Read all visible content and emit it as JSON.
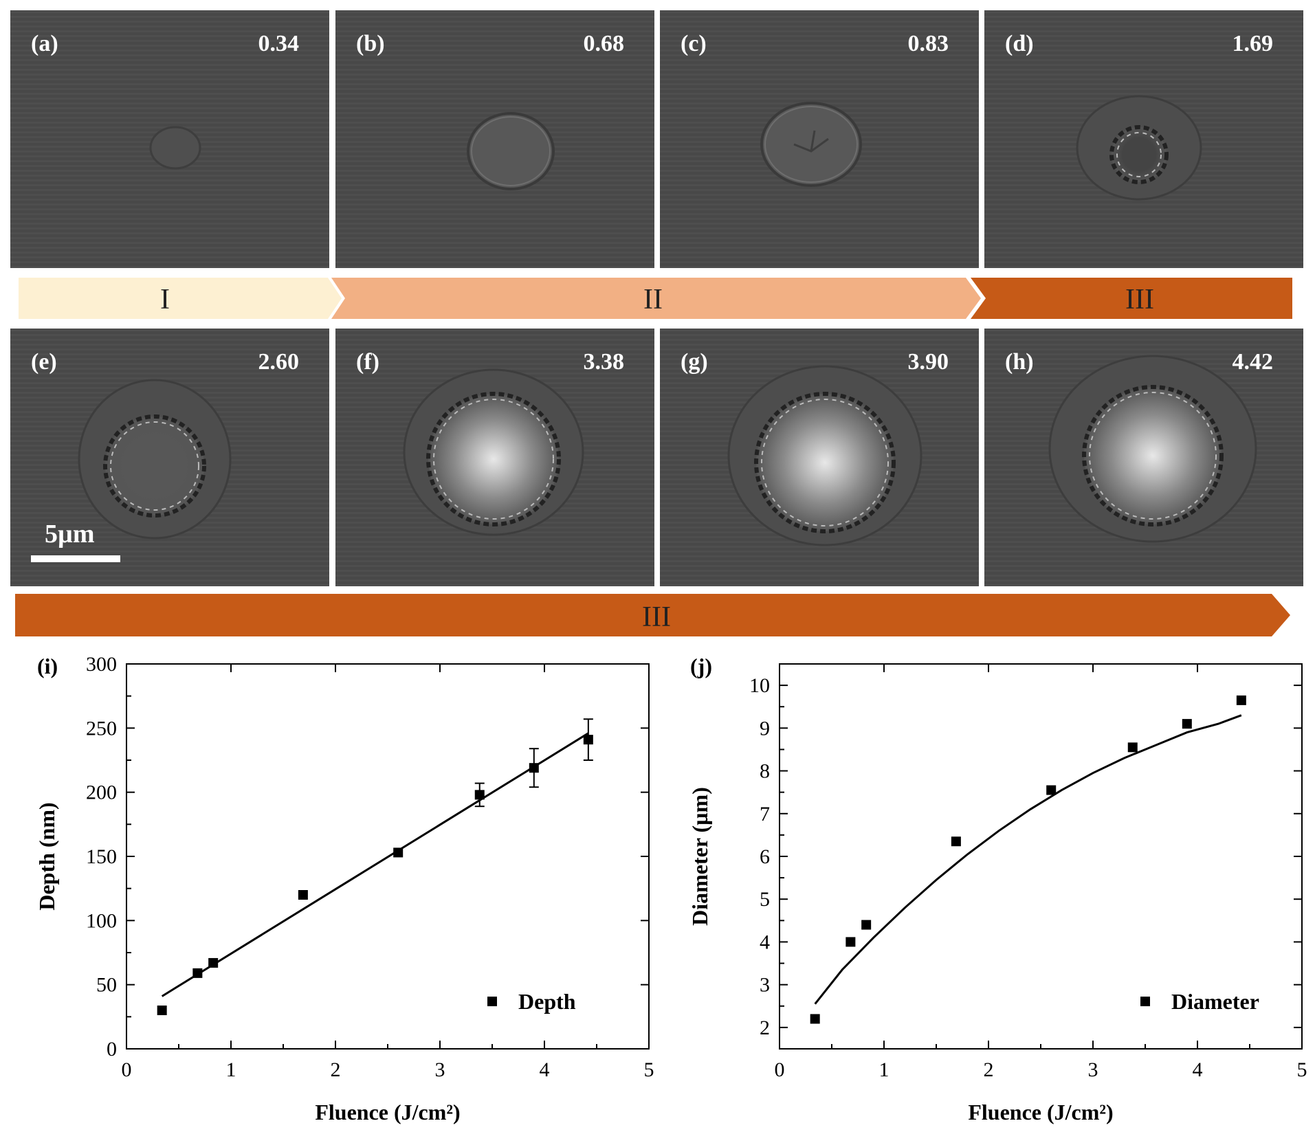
{
  "panels": [
    {
      "label": "(a)",
      "fluence": "0.34"
    },
    {
      "label": "(b)",
      "fluence": "0.68"
    },
    {
      "label": "(c)",
      "fluence": "0.83"
    },
    {
      "label": "(d)",
      "fluence": "1.69"
    },
    {
      "label": "(e)",
      "fluence": "2.60"
    },
    {
      "label": "(f)",
      "fluence": "3.38"
    },
    {
      "label": "(g)",
      "fluence": "3.90"
    },
    {
      "label": "(h)",
      "fluence": "4.42"
    }
  ],
  "scale_bar": "5µm",
  "regions": {
    "row1": [
      "I",
      "II",
      "III"
    ],
    "row2": [
      "III"
    ]
  },
  "colors": {
    "region_I": "#fdf0d2",
    "region_II": "#f2b084",
    "region_III": "#c65a17",
    "panel_bg": "#4a4a4a"
  },
  "chart_data": [
    {
      "type": "scatter",
      "panel_label": "(i)",
      "xlabel": "Fluence (J/cm²)",
      "ylabel": "Depth (nm)",
      "xlim": [
        0,
        5
      ],
      "ylim": [
        0,
        300
      ],
      "xticks": [
        0,
        1,
        2,
        3,
        4,
        5
      ],
      "yticks": [
        0,
        50,
        100,
        150,
        200,
        250,
        300
      ],
      "series": [
        {
          "name": "Depth",
          "x": [
            0.34,
            0.68,
            0.83,
            1.69,
            2.6,
            3.38,
            3.9,
            4.42
          ],
          "y": [
            30,
            59,
            67,
            120,
            153,
            198,
            219,
            241
          ],
          "error": [
            0,
            0,
            0,
            0,
            0,
            9,
            15,
            16
          ]
        }
      ],
      "fit": {
        "type": "linear",
        "x": [
          0.34,
          4.42
        ],
        "y": [
          41,
          246
        ]
      },
      "legend_position": "bottom-right"
    },
    {
      "type": "scatter",
      "panel_label": "(j)",
      "xlabel": "Fluence (J/cm²)",
      "ylabel": "Diameter (µm)",
      "xlim": [
        0,
        5
      ],
      "ylim": [
        1.5,
        10.5
      ],
      "xticks": [
        0,
        1,
        2,
        3,
        4,
        5
      ],
      "yticks": [
        2,
        3,
        4,
        5,
        6,
        7,
        8,
        9,
        10
      ],
      "series": [
        {
          "name": "Diameter",
          "x": [
            0.34,
            0.68,
            0.83,
            1.69,
            2.6,
            3.38,
            3.9,
            4.42
          ],
          "y": [
            2.2,
            4.0,
            4.4,
            6.35,
            7.55,
            8.55,
            9.1,
            9.65
          ]
        }
      ],
      "fit": {
        "type": "curve",
        "x": [
          0.34,
          0.6,
          0.9,
          1.2,
          1.5,
          1.8,
          2.1,
          2.4,
          2.7,
          3.0,
          3.3,
          3.6,
          3.9,
          4.2,
          4.42
        ],
        "y": [
          2.55,
          3.35,
          4.1,
          4.8,
          5.45,
          6.05,
          6.6,
          7.1,
          7.55,
          7.95,
          8.3,
          8.6,
          8.9,
          9.1,
          9.3
        ]
      },
      "legend_position": "bottom-right"
    }
  ]
}
